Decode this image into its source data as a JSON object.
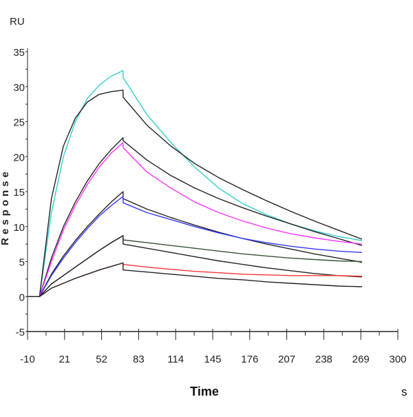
{
  "chart_data": {
    "type": "line",
    "title": "",
    "xlabel": "Time",
    "xunit": "s",
    "ylabel": "Response",
    "yunit": "RU",
    "xlim": [
      -10,
      300
    ],
    "ylim": [
      -5,
      35
    ],
    "xticks": [
      "-10",
      "21",
      "52",
      "83",
      "114",
      "145",
      "176",
      "207",
      "238",
      "269",
      "300"
    ],
    "yticks": [
      "-5",
      "0",
      "5",
      "10",
      "15",
      "20",
      "25",
      "30",
      "35"
    ],
    "grid": false,
    "legend": "none",
    "association_x": [
      -10,
      0,
      10,
      20,
      30,
      40,
      50,
      60,
      70
    ],
    "dissociation_x": [
      70,
      90,
      110,
      130,
      150,
      170,
      190,
      210,
      230,
      250,
      270
    ],
    "series": [
      {
        "color": "#33cccc",
        "association": [
          0,
          0,
          12,
          20,
          25,
          28.3,
          30.2,
          31.5,
          32.3
        ],
        "dissociation": [
          31.3,
          26,
          22,
          18.5,
          15.5,
          13.3,
          11.7,
          10.4,
          9.4,
          8.6,
          8.0
        ]
      },
      {
        "color": "#222222",
        "association": [
          0,
          0,
          14,
          21.5,
          25.5,
          27.8,
          28.9,
          29.3,
          29.5
        ],
        "dissociation": [
          28.5,
          24.5,
          21.5,
          19,
          17,
          15.3,
          13.7,
          12.2,
          10.8,
          9.5,
          8.2
        ]
      },
      {
        "color": "#222222",
        "association": [
          0,
          0,
          5.5,
          10,
          13.5,
          16.5,
          19,
          21,
          22.7
        ],
        "dissociation": [
          22.3,
          19.5,
          17.3,
          15.5,
          14,
          12.7,
          11.5,
          10.4,
          9.3,
          8.3,
          7.3
        ]
      },
      {
        "color": "#ff33ff",
        "association": [
          0,
          0,
          5,
          9.5,
          13,
          16,
          18.5,
          20.5,
          22
        ],
        "dissociation": [
          21.3,
          17.8,
          15.5,
          13.5,
          12,
          10.8,
          9.8,
          9,
          8.4,
          7.9,
          7.5
        ]
      },
      {
        "color": "#222222",
        "association": [
          0,
          0,
          3.2,
          5.8,
          8,
          10,
          11.8,
          13.5,
          15
        ],
        "dissociation": [
          14,
          12.5,
          11.3,
          10.2,
          9.2,
          8.3,
          7.5,
          6.8,
          6.1,
          5.5,
          4.9
        ]
      },
      {
        "color": "#3333ff",
        "association": [
          0,
          0,
          3,
          5.5,
          7.7,
          9.7,
          11.5,
          13,
          14.3
        ],
        "dissociation": [
          13.4,
          12,
          11,
          10,
          9.1,
          8.3,
          7.7,
          7.2,
          6.8,
          6.5,
          6.3
        ]
      },
      {
        "color": "#335533",
        "association": [
          0,
          0,
          1.8,
          3,
          4.2,
          5.4,
          6.6,
          7.7,
          8.7
        ],
        "dissociation": [
          8.1,
          7.7,
          7.3,
          6.9,
          6.5,
          6.1,
          5.8,
          5.5,
          5.3,
          5.1,
          5.0
        ]
      },
      {
        "color": "#222222",
        "association": [
          0,
          0,
          1.8,
          3,
          4.2,
          5.4,
          6.6,
          7.7,
          8.7
        ],
        "dissociation": [
          7.5,
          6.9,
          6.3,
          5.7,
          5.1,
          4.6,
          4.1,
          3.7,
          3.3,
          3.0,
          2.8
        ]
      },
      {
        "color": "#ff3333",
        "association": [
          0,
          0,
          1.2,
          1.9,
          2.6,
          3.2,
          3.8,
          4.3,
          4.8
        ],
        "dissociation": [
          4.6,
          4.2,
          3.9,
          3.6,
          3.4,
          3.2,
          3.1,
          3.0,
          3.0,
          3.0,
          2.9
        ]
      },
      {
        "color": "#222222",
        "association": [
          0,
          0,
          1.2,
          1.9,
          2.6,
          3.2,
          3.8,
          4.3,
          4.8
        ],
        "dissociation": [
          3.8,
          3.5,
          3.2,
          2.9,
          2.6,
          2.4,
          2.1,
          1.9,
          1.7,
          1.5,
          1.4
        ]
      }
    ]
  }
}
